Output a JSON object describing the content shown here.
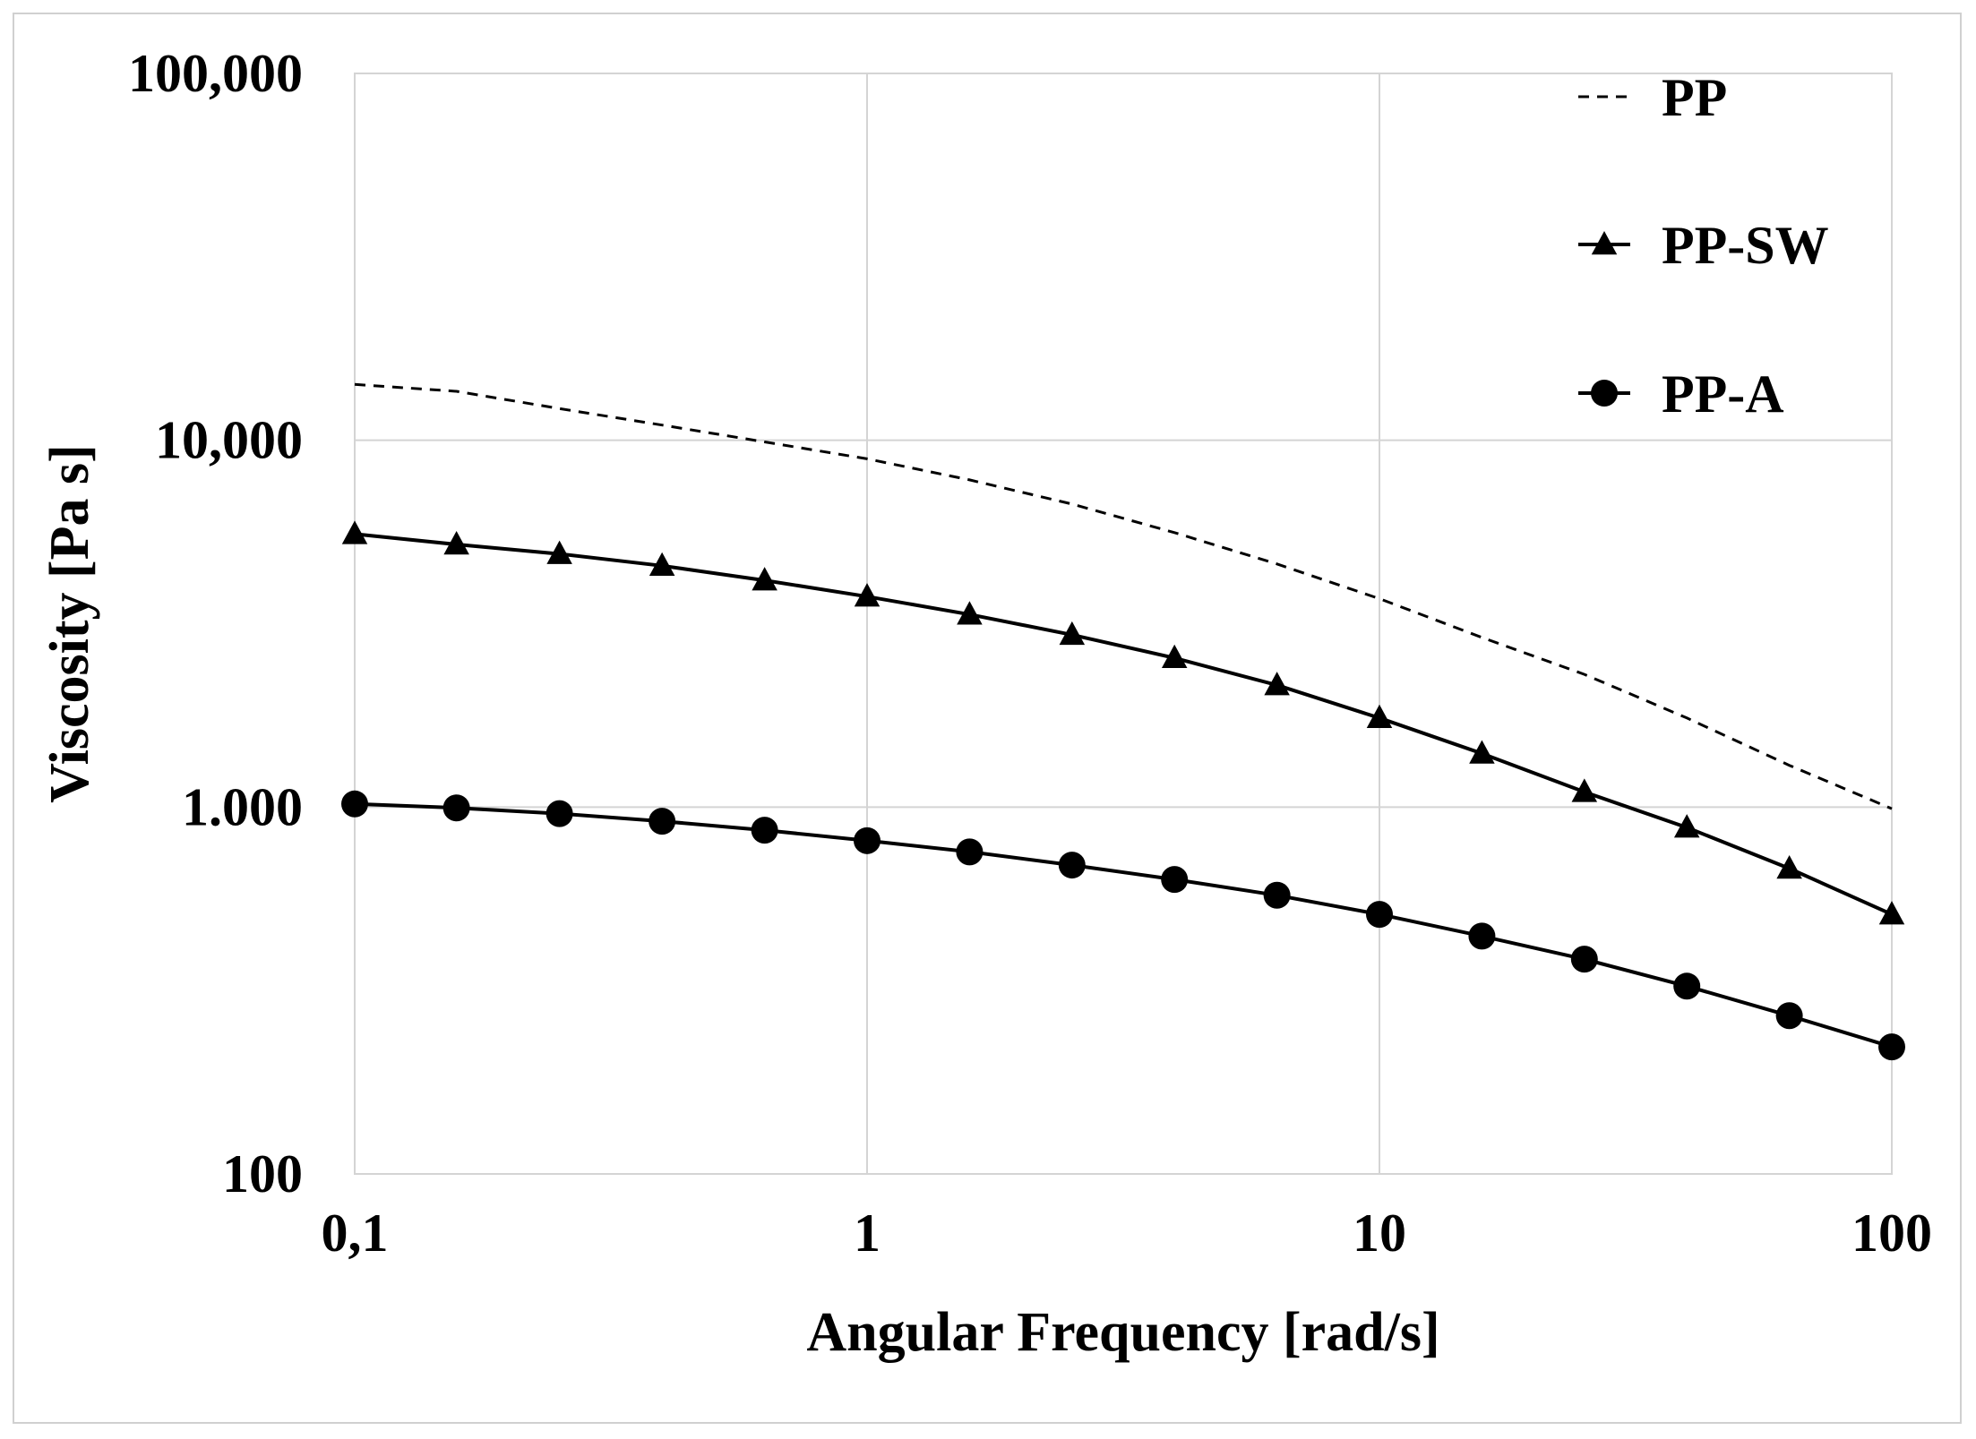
{
  "chart_data": {
    "type": "line",
    "title": "",
    "xlabel": "Angular Frequency [rad/s]",
    "ylabel": "Viscosity [Pa s]",
    "xscale": "log",
    "yscale": "log",
    "xlim": [
      0.1,
      100
    ],
    "ylim": [
      100,
      100000
    ],
    "x_ticks": [
      {
        "value": 0.1,
        "label": "0,1"
      },
      {
        "value": 1,
        "label": "1"
      },
      {
        "value": 10,
        "label": "10"
      },
      {
        "value": 100,
        "label": "100"
      }
    ],
    "y_ticks": [
      {
        "value": 100,
        "label": "100"
      },
      {
        "value": 1000,
        "label": "1.000"
      },
      {
        "value": 10000,
        "label": "10,000"
      },
      {
        "value": 100000,
        "label": "100,000"
      }
    ],
    "grid": true,
    "legend_position": "top-right",
    "series": [
      {
        "name": "PP",
        "style": "dashed",
        "marker": "none",
        "color": "#000000",
        "x": [
          0.1,
          0.158,
          0.251,
          0.398,
          0.631,
          1,
          1.585,
          2.512,
          3.981,
          6.31,
          10,
          15.85,
          25.12,
          39.81,
          63.1,
          100
        ],
        "y": [
          14200,
          13600,
          12200,
          11000,
          9900,
          8900,
          7800,
          6700,
          5600,
          4600,
          3700,
          2900,
          2300,
          1750,
          1300,
          990
        ]
      },
      {
        "name": "PP-SW",
        "style": "solid",
        "marker": "triangle",
        "color": "#000000",
        "x": [
          0.1,
          0.158,
          0.251,
          0.398,
          0.631,
          1,
          1.585,
          2.512,
          3.981,
          6.31,
          10,
          15.85,
          25.12,
          39.81,
          63.1,
          100
        ],
        "y": [
          5550,
          5200,
          4900,
          4550,
          4150,
          3750,
          3350,
          2950,
          2550,
          2150,
          1750,
          1400,
          1100,
          880,
          680,
          510
        ]
      },
      {
        "name": "PP-A",
        "style": "solid",
        "marker": "circle",
        "color": "#000000",
        "x": [
          0.1,
          0.158,
          0.251,
          0.398,
          0.631,
          1,
          1.585,
          2.512,
          3.981,
          6.31,
          10,
          15.85,
          25.12,
          39.81,
          63.1,
          100
        ],
        "y": [
          1020,
          995,
          960,
          915,
          865,
          810,
          755,
          695,
          635,
          575,
          510,
          445,
          385,
          325,
          270,
          222
        ]
      }
    ]
  }
}
